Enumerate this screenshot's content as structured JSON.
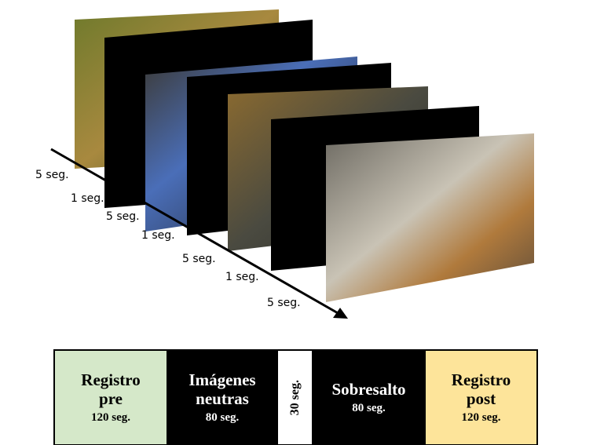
{
  "timeline": {
    "labels": [
      "5 seg.",
      "1 seg.",
      "5 seg.",
      "1 seg.",
      "5 seg.",
      "1 seg.",
      "5 seg."
    ]
  },
  "blocks": [
    {
      "title": "Registro pre",
      "duration": "120 seg."
    },
    {
      "title": "Imágenes neutras",
      "duration": "80 seg."
    },
    {
      "duration": "30 seg."
    },
    {
      "title": "Sobresalto",
      "duration": "80 seg."
    },
    {
      "title": "Registro post",
      "duration": "120 seg."
    }
  ]
}
